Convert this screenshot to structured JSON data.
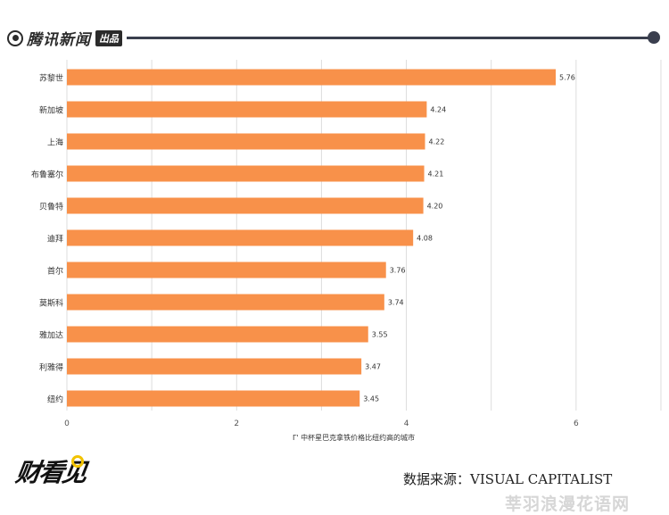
{
  "header": {
    "brand_name": "腾讯新闻",
    "brand_tag": "出品"
  },
  "chart_data": {
    "type": "bar",
    "orientation": "horizontal",
    "categories": [
      "苏黎世",
      "新加坡",
      "上海",
      "布鲁塞尔",
      "贝鲁特",
      "迪拜",
      "首尔",
      "莫斯科",
      "雅加达",
      "利雅得",
      "纽约"
    ],
    "values": [
      5.76,
      4.24,
      4.22,
      4.21,
      4.2,
      4.08,
      3.76,
      3.74,
      3.55,
      3.47,
      3.45
    ],
    "value_labels": [
      "5.76",
      "4.24",
      "4.22",
      "4.21",
      "4.20",
      "4.08",
      "3.76",
      "3.74",
      "3.55",
      "3.47",
      "3.45"
    ],
    "xlim": [
      0,
      7
    ],
    "x_ticks": [
      0,
      2,
      4,
      6
    ],
    "x_tick_labels": [
      "0",
      "2",
      "4",
      "6"
    ],
    "xlabel": "中杯星巴克拿铁价格比纽约高的城市",
    "xlabel_prefix": "Γ'",
    "bar_color": "#f8914a",
    "grid": true
  },
  "footer": {
    "logo_text": "财看见",
    "source": "数据来源：VISUAL CAPITALIST",
    "watermark": "莘羽浪漫花语网"
  }
}
